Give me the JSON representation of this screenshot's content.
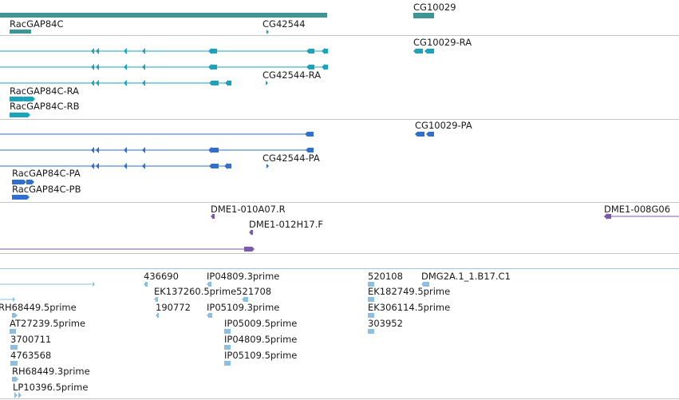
{
  "tracks": {
    "genes": {
      "labels": [
        "RacGAP84C",
        "CG42544",
        "CG10029"
      ]
    },
    "transcripts": {
      "labels": [
        "CG10029-RA",
        "CG42544-RA",
        "RacGAP84C-RA",
        "RacGAP84C-RB"
      ]
    },
    "proteins": {
      "labels": [
        "CG10029-PA",
        "CG42544-PA",
        "RacGAP84C-PA",
        "RacGAP84C-PB"
      ]
    },
    "cdna_clones": {
      "labels": [
        "DME1-010A07.R",
        "DME1-008G06",
        "DME1-012H17.F"
      ]
    },
    "ests": {
      "labels": [
        "436690",
        "IP04809.3prime",
        "EK137260.5prime521708",
        "190772",
        "IP05109.3prime",
        "RH68449.5prime",
        "AT27239.5prime",
        "3700711",
        "4763568",
        "RH68449.3prime",
        "LP10396.5prime",
        "IP05009.5prime",
        "IP04809.5prime",
        "IP05109.5prime",
        "520108",
        "DMG2A.1_1.B17.C1",
        "EK182749.5prime",
        "EK306114.5prime",
        "303952"
      ]
    }
  },
  "colors": {
    "gene": "#3f9494",
    "transcript": "#1aa3bb",
    "protein": "#2f6fcf",
    "cdna": "#7b59ad",
    "est": "#8dbfe0",
    "separator": "#c7c7c7"
  }
}
